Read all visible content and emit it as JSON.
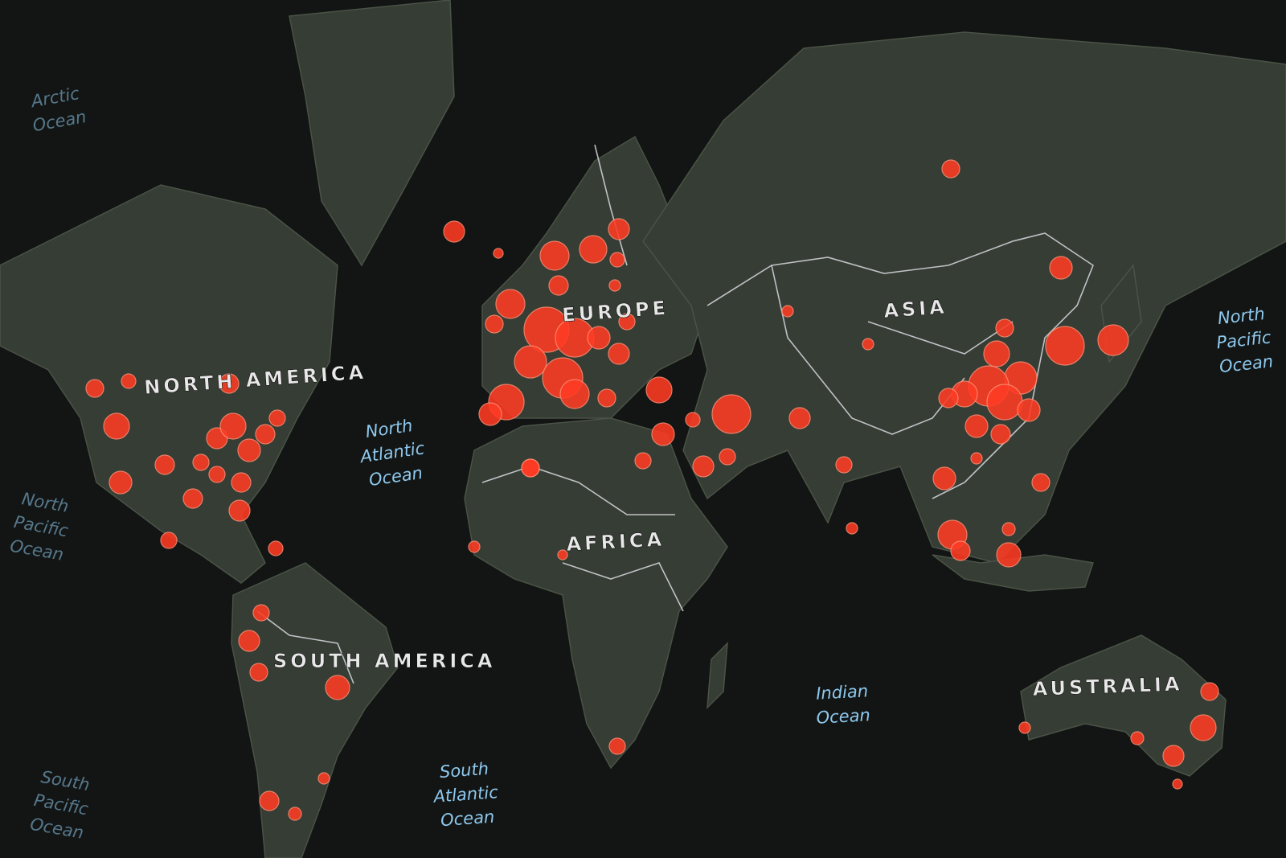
{
  "map": {
    "continent_labels": [
      "NORTH AMERICA",
      "SOUTH AMERICA",
      "EUROPE",
      "AFRICA",
      "ASIA",
      "AUSTRALIA"
    ],
    "ocean_labels": [
      {
        "lines": [
          "North",
          "Atlantic",
          "Ocean"
        ]
      },
      {
        "lines": [
          "South",
          "Atlantic",
          "Ocean"
        ]
      },
      {
        "lines": [
          "Indian",
          "Ocean"
        ]
      },
      {
        "lines": [
          "North",
          "Pacific",
          "Ocean"
        ]
      },
      {
        "lines": [
          "North",
          "Pacific",
          "Ocean"
        ]
      },
      {
        "lines": [
          "South",
          "Pacific",
          "Ocean"
        ]
      },
      {
        "lines": [
          "Arctic",
          "Ocean"
        ]
      }
    ]
  }
}
